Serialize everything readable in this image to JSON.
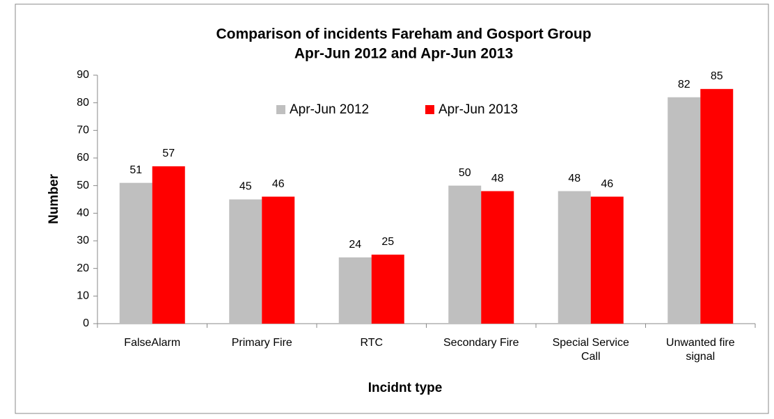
{
  "chart_data": {
    "type": "bar",
    "title": [
      "Comparison of incidents Fareham and Gosport Group",
      "Apr-Jun 2012 and Apr-Jun 2013"
    ],
    "x_label": "Incidnt type",
    "y_label": "Number",
    "categories": [
      "FalseAlarm",
      "Primary Fire",
      "RTC",
      "Secondary Fire",
      "Special Service Call",
      "Unwanted fire signal"
    ],
    "series": [
      {
        "name": "Apr-Jun 2012",
        "color": "#bfbfbf",
        "values": [
          51,
          45,
          24,
          50,
          48,
          82
        ]
      },
      {
        "name": "Apr-Jun 2013",
        "color": "#ff0000",
        "values": [
          57,
          46,
          25,
          48,
          46,
          85
        ]
      }
    ],
    "ylim": [
      0,
      90
    ],
    "yticks": [
      0,
      10,
      20,
      30,
      40,
      50,
      60,
      70,
      80,
      90
    ],
    "grid": false,
    "legend": "top"
  }
}
